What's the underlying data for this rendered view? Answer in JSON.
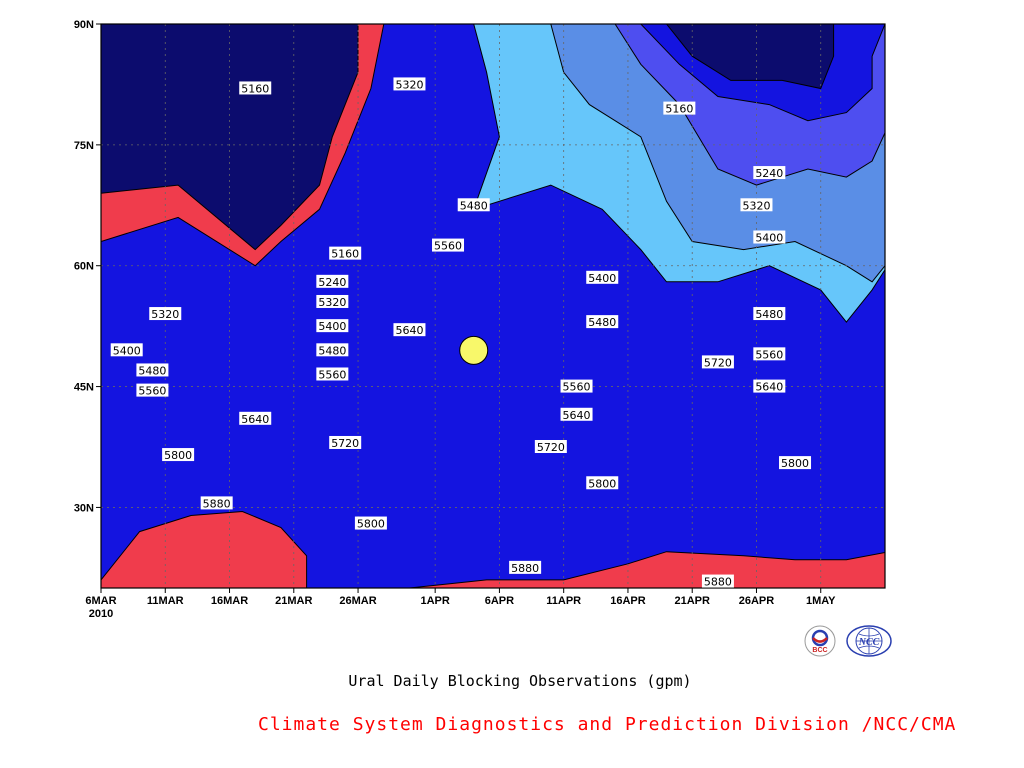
{
  "chart_data": {
    "type": "contour",
    "title": "Ural Daily Blocking Observations (gpm)",
    "units": "gpm",
    "x_ticks": [
      "6MAR",
      "11MAR",
      "16MAR",
      "21MAR",
      "26MAR",
      "1APR",
      "6APR",
      "11APR",
      "16APR",
      "21APR",
      "26APR",
      "1MAY"
    ],
    "x_year": "2010",
    "x_range": [
      "2010-03-06",
      "2010-05-06"
    ],
    "y_ticks": [
      "90N",
      "75N",
      "60N",
      "45N",
      "30N"
    ],
    "y_ticks_deg": [
      90,
      75,
      60,
      45,
      30
    ],
    "y_range": [
      20,
      90
    ],
    "grid": true,
    "levels": [
      5160,
      5240,
      5320,
      5400,
      5480,
      5560,
      5640,
      5720,
      5800,
      5880
    ],
    "fill_colors": [
      "#0c0c6e",
      "#1414e0",
      "#4e4ef0",
      "#5a8ee6",
      "#66c6fa",
      "#f8f86a",
      "#fae0a0",
      "#f8a266",
      "#f87448",
      "#f86e7a",
      "#f03c4c"
    ],
    "contour_labels": [
      {
        "value": "5160",
        "date": "2010-03-18",
        "lat": 82
      },
      {
        "value": "5320",
        "date": "2010-03-30",
        "lat": 82.5
      },
      {
        "value": "5160",
        "date": "2010-04-20",
        "lat": 79.5
      },
      {
        "value": "5240",
        "date": "2010-04-27",
        "lat": 71.5
      },
      {
        "value": "5320",
        "date": "2010-04-26",
        "lat": 67.5
      },
      {
        "value": "5400",
        "date": "2010-04-27",
        "lat": 63.5
      },
      {
        "value": "5480",
        "date": "2010-04-04",
        "lat": 67.5
      },
      {
        "value": "5560",
        "date": "2010-04-02",
        "lat": 62.5
      },
      {
        "value": "5160",
        "date": "2010-03-25",
        "lat": 61.5
      },
      {
        "value": "5240",
        "date": "2010-03-24",
        "lat": 58
      },
      {
        "value": "5320",
        "date": "2010-03-24",
        "lat": 55.5
      },
      {
        "value": "5400",
        "date": "2010-03-24",
        "lat": 52.5
      },
      {
        "value": "5480",
        "date": "2010-03-24",
        "lat": 49.5
      },
      {
        "value": "5560",
        "date": "2010-03-24",
        "lat": 46.5
      },
      {
        "value": "5640",
        "date": "2010-03-30",
        "lat": 52
      },
      {
        "value": "5400",
        "date": "2010-04-14",
        "lat": 58.5
      },
      {
        "value": "5480",
        "date": "2010-04-14",
        "lat": 53
      },
      {
        "value": "5560",
        "date": "2010-04-12",
        "lat": 45
      },
      {
        "value": "5640",
        "date": "2010-04-12",
        "lat": 41.5
      },
      {
        "value": "5720",
        "date": "2010-04-10",
        "lat": 37.5
      },
      {
        "value": "5800",
        "date": "2010-04-14",
        "lat": 33
      },
      {
        "value": "5880",
        "date": "2010-04-08",
        "lat": 22.5
      },
      {
        "value": "5720",
        "date": "2010-04-23",
        "lat": 48
      },
      {
        "value": "5480",
        "date": "2010-04-27",
        "lat": 54
      },
      {
        "value": "5560",
        "date": "2010-04-27",
        "lat": 49
      },
      {
        "value": "5640",
        "date": "2010-04-27",
        "lat": 45
      },
      {
        "value": "5800",
        "date": "2010-04-29",
        "lat": 35.5
      },
      {
        "value": "5880",
        "date": "2010-04-23",
        "lat": 20.8
      },
      {
        "value": "5320",
        "date": "2010-03-11",
        "lat": 54
      },
      {
        "value": "5400",
        "date": "2010-03-08",
        "lat": 49.5
      },
      {
        "value": "5480",
        "date": "2010-03-10",
        "lat": 47
      },
      {
        "value": "5560",
        "date": "2010-03-10",
        "lat": 44.5
      },
      {
        "value": "5640",
        "date": "2010-03-18",
        "lat": 41
      },
      {
        "value": "5720",
        "date": "2010-03-25",
        "lat": 38
      },
      {
        "value": "5800",
        "date": "2010-03-12",
        "lat": 36.5
      },
      {
        "value": "5880",
        "date": "2010-03-15",
        "lat": 30.5
      },
      {
        "value": "5800",
        "date": "2010-03-27",
        "lat": 28
      }
    ]
  },
  "credit": "Climate System Diagnostics and Prediction Division /NCC/CMA",
  "logos": [
    {
      "icon": "bcc-logo-icon",
      "text": "BCC",
      "color": "#cc2222"
    },
    {
      "icon": "ncc-logo-icon",
      "text": "NCC",
      "color": "#2a3fb0"
    }
  ]
}
